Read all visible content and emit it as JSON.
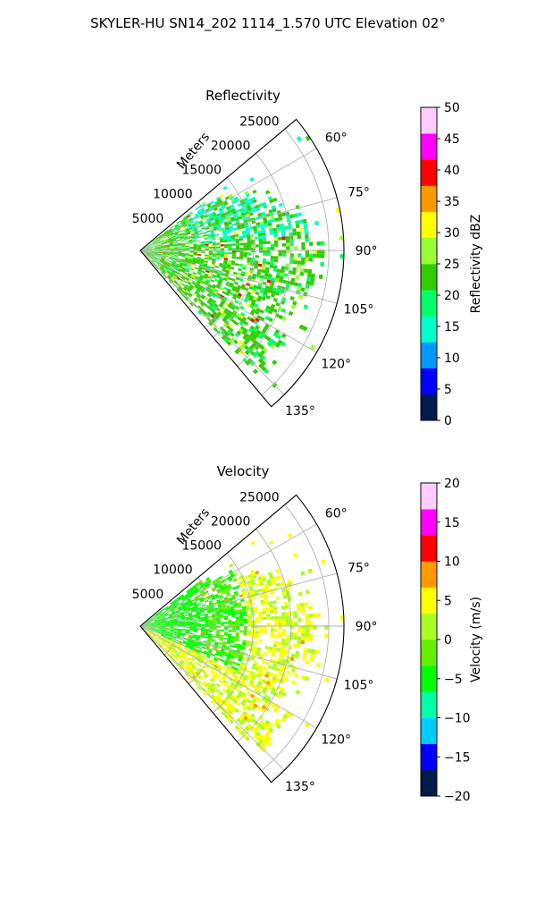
{
  "figure": {
    "suptitle": "SKYLER-HU  SN14_202  1114_1.570 UTC Elevation 02°"
  },
  "chart_data": [
    {
      "type": "polar-sector-heatmap",
      "title": "Reflectivity",
      "range_axis_label": "Meters",
      "range_ticks": [
        "5000",
        "10000",
        "15000",
        "20000",
        "25000"
      ],
      "range_values": [
        5000,
        10000,
        15000,
        20000,
        25000
      ],
      "rmax": 27000,
      "azimuth_range_deg": [
        50,
        140
      ],
      "azimuth_ticks": [
        "60°",
        "75°",
        "90°",
        "105°",
        "120°",
        "135°"
      ],
      "azimuth_values": [
        60,
        75,
        90,
        105,
        120,
        135
      ],
      "grid": true,
      "colorbar": {
        "label": "Reflectivity dBZ",
        "ticks": [
          "0",
          "5",
          "10",
          "15",
          "20",
          "25",
          "30",
          "35",
          "40",
          "45",
          "50"
        ],
        "range": [
          0,
          50
        ],
        "colors": [
          "#001a4d",
          "#0000ff",
          "#0099ff",
          "#00ffcc",
          "#00ff66",
          "#33cc00",
          "#99ff33",
          "#ffff00",
          "#ff9900",
          "#ff0000",
          "#ff00ff",
          "#ffccff"
        ]
      }
    },
    {
      "type": "polar-sector-heatmap",
      "title": "Velocity",
      "range_axis_label": "Meters",
      "range_ticks": [
        "5000",
        "10000",
        "15000",
        "20000",
        "25000"
      ],
      "range_values": [
        5000,
        10000,
        15000,
        20000,
        25000
      ],
      "rmax": 27000,
      "azimuth_range_deg": [
        50,
        140
      ],
      "azimuth_ticks": [
        "60°",
        "75°",
        "90°",
        "105°",
        "120°",
        "135°"
      ],
      "azimuth_values": [
        60,
        75,
        90,
        105,
        120,
        135
      ],
      "grid": true,
      "colorbar": {
        "label": "Velocity (m/s)",
        "ticks": [
          "−20",
          "−15",
          "−10",
          "−5",
          "0",
          "5",
          "10",
          "15",
          "20"
        ],
        "range": [
          -20,
          20
        ],
        "colors": [
          "#001a4d",
          "#0000ff",
          "#00ccff",
          "#00ffaa",
          "#00ff00",
          "#66ee00",
          "#aaff22",
          "#ffff00",
          "#ff9900",
          "#ff0000",
          "#ff00ff",
          "#ffccff"
        ]
      }
    }
  ]
}
